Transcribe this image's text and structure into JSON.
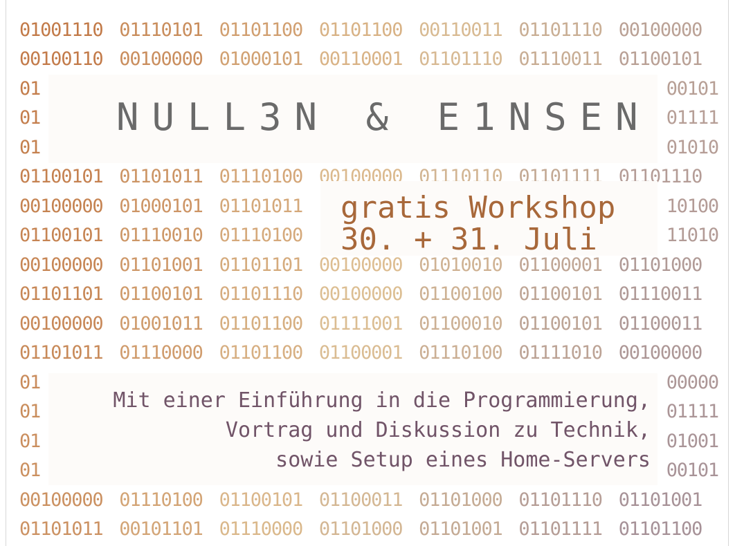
{
  "binary_rows": [
    [
      "01001110",
      "01110101",
      "01101100",
      "01101100",
      "00110011",
      "01101110",
      "00100000"
    ],
    [
      "00100110",
      "00100000",
      "01000101",
      "00110001",
      "01101110",
      "01110011",
      "01100101"
    ],
    [
      "01",
      "",
      "",
      "",
      "",
      "",
      "00101"
    ],
    [
      "01",
      "",
      "",
      "",
      "",
      "",
      "01111"
    ],
    [
      "01",
      "",
      "",
      "",
      "",
      "",
      "01010"
    ],
    [
      "01100101",
      "01101011",
      "01110100",
      "00100000",
      "01110110",
      "01101111",
      "01101110"
    ],
    [
      "00100000",
      "01000101",
      "01101011",
      "",
      "",
      "",
      "10100"
    ],
    [
      "01100101",
      "01110010",
      "01110100",
      "",
      "",
      "",
      "11010"
    ],
    [
      "00100000",
      "01101001",
      "01101101",
      "00100000",
      "01010010",
      "01100001",
      "01101000"
    ],
    [
      "01101101",
      "01100101",
      "01101110",
      "00100000",
      "01100100",
      "01100101",
      "01110011"
    ],
    [
      "00100000",
      "01001011",
      "01101100",
      "01111001",
      "01100010",
      "01100101",
      "01100011"
    ],
    [
      "01101011",
      "01110000",
      "01101100",
      "01100001",
      "01110100",
      "01111010",
      "00100000"
    ],
    [
      "01",
      "",
      "",
      "",
      "",
      "",
      "00000"
    ],
    [
      "01",
      "",
      "",
      "",
      "",
      "",
      "01111"
    ],
    [
      "01",
      "",
      "",
      "",
      "",
      "",
      "01001"
    ],
    [
      "01",
      "",
      "",
      "",
      "",
      "",
      "00101"
    ],
    [
      "00100000",
      "01110100",
      "01100101",
      "01100011",
      "01101000",
      "01101110",
      "01101001"
    ],
    [
      "01101011",
      "00101101",
      "01110000",
      "01101000",
      "01101001",
      "01101111",
      "01101100"
    ]
  ],
  "colors": {
    "col_start": "#c27a48",
    "col_mid": "#ddbe92",
    "col_end": "#a69197",
    "title": "#6a6a6a",
    "workshop": "#a8683a",
    "intro": "#715468"
  },
  "title": "NULL3N & E1NSEN",
  "workshop": {
    "line1": "gratis Workshop",
    "line2": "30. + 31. Juli"
  },
  "intro": {
    "line1": "Mit einer Einführung in die Programmierung,",
    "line2": "Vortrag und Diskussion zu Technik,",
    "line3": "sowie Setup eines Home-Servers"
  }
}
